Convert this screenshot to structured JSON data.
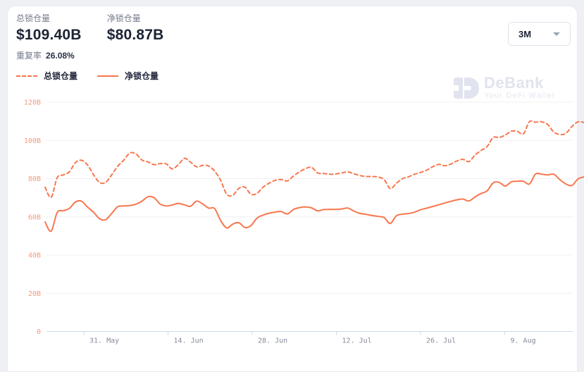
{
  "header": {
    "stats": [
      {
        "label": "总锁仓量",
        "value": "$109.40B"
      },
      {
        "label": "净锁仓量",
        "value": "$80.87B"
      }
    ],
    "duplicate": {
      "label": "重复率",
      "value": "26.08%"
    }
  },
  "range_select": {
    "value": "3M"
  },
  "watermark": {
    "brand": "DeBank",
    "tagline": "Your DeFi Wallet"
  },
  "colors": {
    "accent_orange": "#f8764d",
    "y_label": "#f59a7c",
    "x_label": "#858b99",
    "gridline": "#f0f0f4",
    "axis_line": "#cfdbe9",
    "watermark": "#e1e4ee"
  },
  "chart_data": {
    "type": "line",
    "title": "",
    "xlabel": "",
    "ylabel": "",
    "unit": "USD billions (B)",
    "ylim": [
      0,
      120
    ],
    "grid": "horizontal",
    "legend_position": "top-left",
    "y_tick_values": [
      0,
      20,
      40,
      60,
      80,
      100,
      120
    ],
    "y_tick_labels": [
      "0",
      "20B",
      "40B",
      "60B",
      "80B",
      "100B",
      "120B"
    ],
    "x_tick_labels": [
      "31. May",
      "14. Jun",
      "28. Jun",
      "12. Jul",
      "26. Jul",
      "9. Aug"
    ],
    "series": [
      {
        "name": "总锁仓量",
        "style": "dashed",
        "color": "#f8764d",
        "values": [
          75.5,
          70.2,
          80.5,
          81.9,
          83.5,
          88.3,
          89.6,
          87.2,
          82,
          78,
          78,
          82,
          86.5,
          89.7,
          93.4,
          92.9,
          89.7,
          88.7,
          87.3,
          87.8,
          87.7,
          85.1,
          87.3,
          90.6,
          88.7,
          86.2,
          86.9,
          86.6,
          83.9,
          79,
          71.8,
          71.3,
          74.9,
          75.5,
          71.8,
          72.3,
          75.5,
          77.6,
          79.1,
          79.5,
          78.8,
          81.3,
          83.5,
          85.2,
          85.9,
          83,
          82.7,
          82.3,
          82.4,
          83,
          83.5,
          82.5,
          81.6,
          81.1,
          81.1,
          80.8,
          79.5,
          74.8,
          77.5,
          79.9,
          80.9,
          82.3,
          83.2,
          84.4,
          86.2,
          87.4,
          86.7,
          87.6,
          89.2,
          90.1,
          88.9,
          92.3,
          94.7,
          96.8,
          101.5,
          101.5,
          102.8,
          104.8,
          104.7,
          103.5,
          109.8,
          109.5,
          109.7,
          108.3,
          104.4,
          103.1,
          103.7,
          107.2,
          109.7,
          109.4
        ]
      },
      {
        "name": "净锁仓量",
        "style": "solid",
        "color": "#f8764d",
        "values": [
          57.3,
          52.5,
          62.3,
          63.2,
          64.4,
          67.7,
          68.2,
          65.1,
          62.4,
          59,
          58.5,
          61.8,
          65.3,
          65.7,
          65.9,
          66.6,
          68.2,
          70.5,
          70,
          66.7,
          65.7,
          66.2,
          67,
          66.3,
          65.5,
          68.2,
          66.8,
          64.6,
          64.3,
          58,
          54.2,
          56.2,
          56.9,
          54.4,
          55.4,
          59.3,
          60.9,
          61.9,
          62.5,
          62.8,
          61.5,
          63.8,
          64.8,
          65.2,
          64.7,
          63.1,
          63.8,
          63.9,
          63.9,
          64.1,
          64.6,
          63,
          61.8,
          61.3,
          60.7,
          60.2,
          59.6,
          56.5,
          60.5,
          61.4,
          61.7,
          62.4,
          63.7,
          64.5,
          65.4,
          66.3,
          67.2,
          68.1,
          68.9,
          69.3,
          68.3,
          70.4,
          72.2,
          73.6,
          77.8,
          78,
          76.1,
          78.3,
          78.6,
          78.6,
          77.2,
          82.4,
          82.3,
          81.9,
          82.3,
          79.5,
          77.2,
          76.4,
          79.8,
          80.9
        ]
      }
    ]
  }
}
